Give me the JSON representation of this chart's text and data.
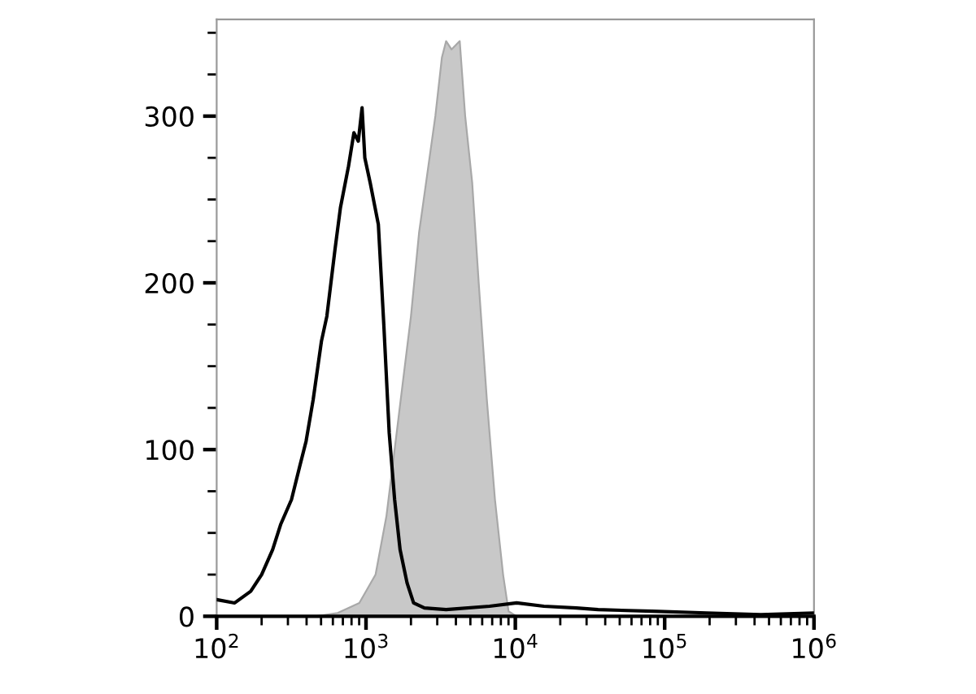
{
  "chart_data": {
    "type": "line",
    "log": "x",
    "xlim": [
      100,
      1000000
    ],
    "ylim": [
      0,
      358
    ],
    "xticks": [
      {
        "value": 100,
        "label": "10$^{2}$"
      },
      {
        "value": 1000,
        "label": "10$^{3}$"
      },
      {
        "value": 10000,
        "label": "10$^{4}$"
      },
      {
        "value": 100000,
        "label": "10$^{5}$"
      },
      {
        "value": 1000000,
        "label": "10$^{6}$"
      }
    ],
    "yticks": [
      0,
      100,
      200,
      300
    ],
    "grid": false,
    "legend": false,
    "series": [
      {
        "type": "area",
        "color": "#c8c8c8",
        "x": [
          462,
          646,
          902,
          1159,
          1370,
          1555,
          1763,
          2000,
          2266,
          2570,
          2913,
          3221,
          3441,
          3741,
          4243,
          4615,
          5143,
          5686,
          6445,
          7305,
          8281,
          9010,
          10210
        ],
        "values": [
          0,
          2,
          8,
          25,
          60,
          100,
          140,
          180,
          230,
          265,
          300,
          335,
          345,
          340,
          345,
          300,
          260,
          200,
          130,
          70,
          25,
          3,
          0
        ]
      },
      {
        "type": "line",
        "color": "#000000",
        "x": [
          100,
          132,
          169,
          200,
          237,
          268,
          317,
          360,
          397,
          443,
          503,
          547,
          620,
          674,
          764,
          830,
          888,
          941,
          982,
          1067,
          1210,
          1316,
          1430,
          1555,
          1691,
          1884,
          2083,
          2462,
          3441,
          6719,
          10210,
          15520,
          25630,
          35810,
          82640,
          191000,
          440600,
          1000000
        ],
        "values": [
          10,
          8,
          15,
          25,
          40,
          55,
          70,
          90,
          105,
          130,
          165,
          180,
          220,
          245,
          270,
          290,
          285,
          305,
          275,
          260,
          235,
          175,
          110,
          70,
          40,
          20,
          8,
          5,
          4,
          6,
          8,
          6,
          5,
          4,
          3,
          2,
          1,
          2
        ]
      }
    ]
  }
}
